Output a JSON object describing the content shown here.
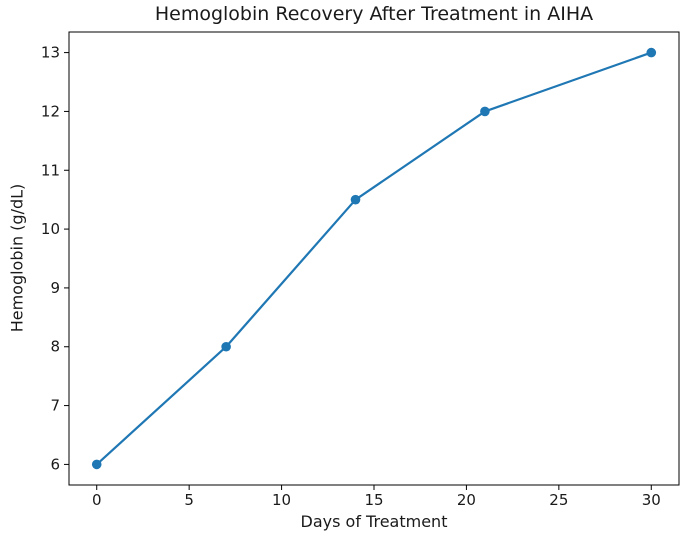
{
  "chart_data": {
    "type": "line",
    "title": "Hemoglobin Recovery After Treatment in AIHA",
    "xlabel": "Days of Treatment",
    "ylabel": "Hemoglobin (g/dL)",
    "x": [
      0,
      7,
      14,
      21,
      30
    ],
    "y": [
      6.0,
      8.0,
      10.5,
      12.0,
      13.0
    ],
    "x_ticks": [
      0,
      5,
      10,
      15,
      20,
      25,
      30
    ],
    "y_ticks": [
      6,
      7,
      8,
      9,
      10,
      11,
      12,
      13
    ],
    "xlim": [
      -1.5,
      31.5
    ],
    "ylim": [
      5.65,
      13.35
    ],
    "line_color": "#1f77b4",
    "marker": "circle",
    "grid": false,
    "legend_position": "none"
  }
}
